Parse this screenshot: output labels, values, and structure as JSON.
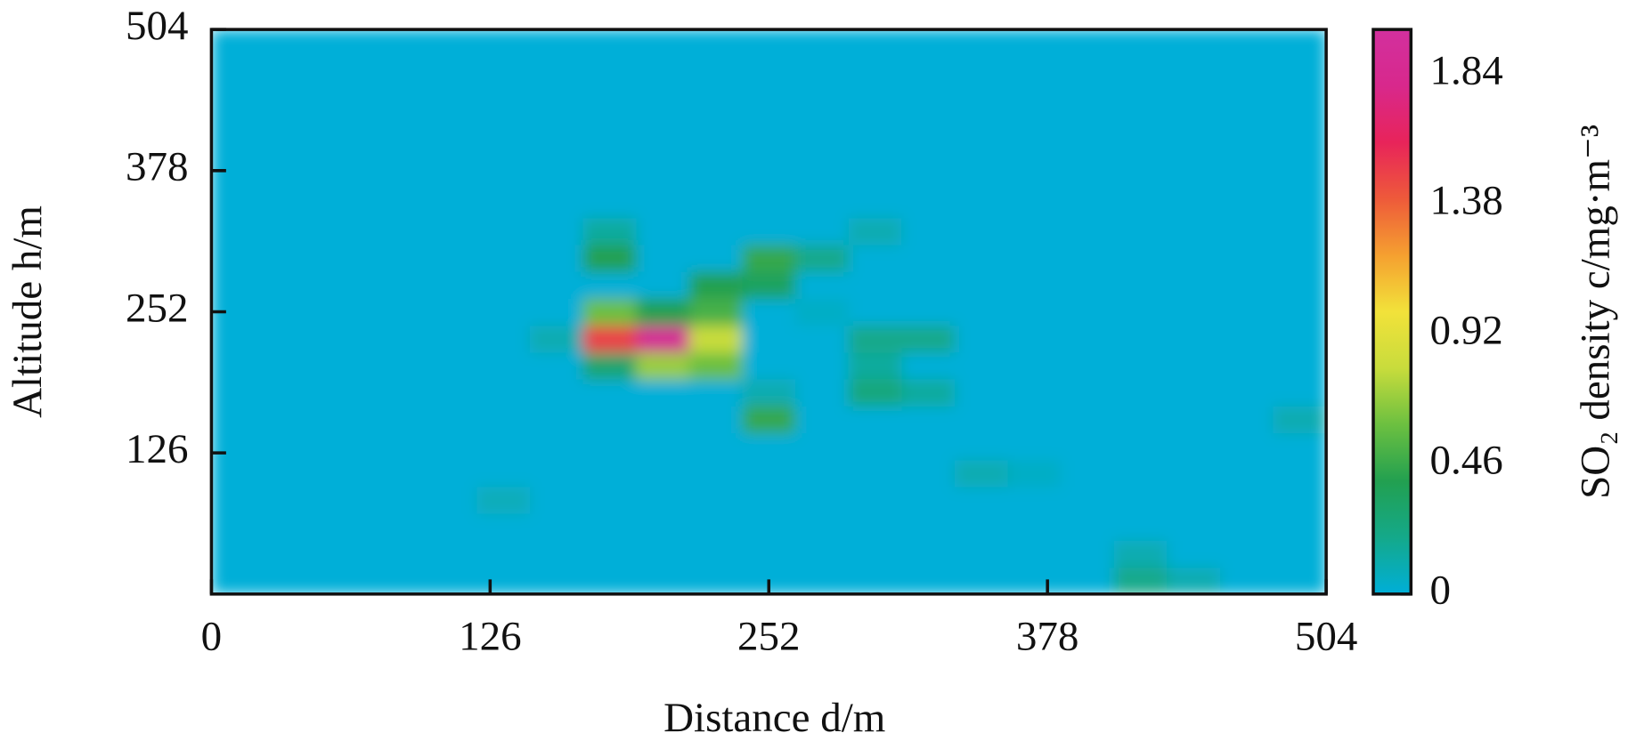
{
  "chart_data": {
    "type": "heatmap",
    "xlabel": "Distance d/m",
    "ylabel": "Altitude h/m",
    "colorbar_label": "SO₂ density c/mg·m⁻³",
    "xlim": [
      0,
      504
    ],
    "ylim": [
      0,
      504
    ],
    "xticks": [
      0,
      126,
      252,
      378,
      504
    ],
    "yticks": [
      126,
      252,
      378,
      504
    ],
    "zlim": [
      0,
      2
    ],
    "zticks": [
      0,
      0.46,
      0.92,
      1.38,
      1.84
    ],
    "colorscale": [
      "#00afd8",
      "#14a98a",
      "#22a050",
      "#6cc040",
      "#c8dc3c",
      "#f2e23a",
      "#f5a030",
      "#ee5a3a",
      "#e8245a",
      "#d8288c",
      "#d2309e"
    ],
    "x": [
      12,
      36,
      60,
      84,
      108,
      132,
      156,
      180,
      204,
      228,
      252,
      276,
      300,
      324,
      348,
      372,
      396,
      420,
      444,
      468,
      492
    ],
    "y": [
      12,
      36,
      60,
      84,
      108,
      132,
      156,
      180,
      204,
      228,
      252,
      276,
      300,
      324,
      348,
      372,
      396,
      420,
      444,
      468,
      492
    ],
    "z": [
      [
        0,
        0,
        0,
        0,
        0,
        0,
        0,
        0,
        0,
        0,
        0,
        0,
        0,
        0,
        0,
        0,
        0,
        0.2,
        0.1,
        0,
        0
      ],
      [
        0,
        0,
        0,
        0,
        0,
        0,
        0,
        0,
        0,
        0,
        0,
        0,
        0,
        0,
        0,
        0,
        0,
        0.1,
        0,
        0,
        0
      ],
      [
        0,
        0,
        0,
        0,
        0,
        0,
        0,
        0,
        0,
        0,
        0,
        0,
        0,
        0,
        0,
        0,
        0,
        0,
        0,
        0,
        0
      ],
      [
        0,
        0,
        0,
        0,
        0,
        0.08,
        0,
        0,
        0,
        0,
        0,
        0,
        0,
        0,
        0,
        0,
        0,
        0,
        0,
        0,
        0
      ],
      [
        0,
        0,
        0,
        0,
        0,
        0,
        0,
        0,
        0,
        0,
        0,
        0,
        0,
        0,
        0.1,
        0.05,
        0,
        0,
        0,
        0,
        0
      ],
      [
        0,
        0,
        0,
        0,
        0,
        0,
        0,
        0,
        0,
        0,
        0,
        0,
        0,
        0,
        0,
        0,
        0,
        0,
        0,
        0,
        0
      ],
      [
        0,
        0,
        0,
        0,
        0,
        0,
        0,
        0,
        0,
        0,
        0.45,
        0,
        0,
        0,
        0,
        0,
        0,
        0,
        0,
        0,
        0.1
      ],
      [
        0,
        0,
        0,
        0,
        0,
        0,
        0,
        0,
        0,
        0,
        0.1,
        0,
        0.25,
        0.15,
        0,
        0,
        0,
        0,
        0,
        0,
        0
      ],
      [
        0,
        0,
        0,
        0,
        0,
        0,
        0,
        0.3,
        0.7,
        0.6,
        0,
        0,
        0.15,
        0,
        0,
        0,
        0,
        0,
        0,
        0,
        0
      ],
      [
        0,
        0,
        0,
        0,
        0,
        0,
        0.1,
        1.5,
        1.9,
        0.8,
        0,
        0,
        0.2,
        0.2,
        0,
        0,
        0,
        0,
        0,
        0,
        0
      ],
      [
        0,
        0,
        0,
        0,
        0,
        0,
        0,
        0.6,
        0.4,
        0.5,
        0,
        0.05,
        0,
        0,
        0,
        0,
        0,
        0,
        0,
        0,
        0
      ],
      [
        0,
        0,
        0,
        0,
        0,
        0,
        0,
        0,
        0,
        0.4,
        0.35,
        0,
        0,
        0,
        0,
        0,
        0,
        0,
        0,
        0,
        0
      ],
      [
        0,
        0,
        0,
        0,
        0,
        0,
        0,
        0.4,
        0,
        0,
        0.45,
        0.2,
        0,
        0,
        0,
        0,
        0,
        0,
        0,
        0,
        0
      ],
      [
        0,
        0,
        0,
        0,
        0,
        0,
        0,
        0.15,
        0,
        0,
        0,
        0,
        0.1,
        0,
        0,
        0,
        0,
        0,
        0,
        0,
        0
      ],
      [
        0,
        0,
        0,
        0,
        0,
        0,
        0,
        0,
        0,
        0,
        0,
        0,
        0,
        0,
        0,
        0,
        0,
        0,
        0,
        0,
        0
      ],
      [
        0,
        0,
        0,
        0,
        0,
        0,
        0,
        0,
        0,
        0,
        0,
        0,
        0,
        0,
        0,
        0,
        0,
        0,
        0,
        0,
        0
      ],
      [
        0,
        0,
        0,
        0,
        0,
        0,
        0,
        0,
        0,
        0,
        0,
        0,
        0,
        0,
        0,
        0,
        0,
        0,
        0,
        0,
        0
      ],
      [
        0,
        0,
        0,
        0,
        0,
        0,
        0,
        0,
        0,
        0,
        0,
        0,
        0,
        0,
        0,
        0,
        0,
        0,
        0,
        0,
        0
      ],
      [
        0,
        0,
        0,
        0,
        0,
        0,
        0,
        0,
        0,
        0,
        0,
        0,
        0,
        0,
        0,
        0,
        0,
        0,
        0,
        0,
        0
      ],
      [
        0,
        0,
        0,
        0,
        0,
        0,
        0,
        0,
        0,
        0,
        0,
        0,
        0,
        0,
        0,
        0,
        0,
        0,
        0,
        0,
        0
      ],
      [
        0,
        0,
        0,
        0,
        0,
        0,
        0,
        0,
        0,
        0,
        0,
        0,
        0,
        0,
        0,
        0,
        0,
        0,
        0,
        0,
        0
      ]
    ]
  }
}
